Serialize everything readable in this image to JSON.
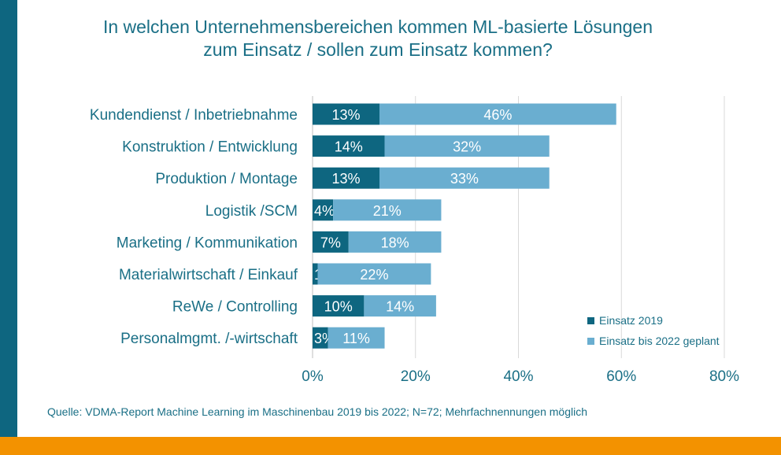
{
  "title_lines": [
    "In welchen Unternehmensbereichen kommen ML-basierte Lösungen",
    "zum Einsatz / sollen zum Einsatz kommen?"
  ],
  "source": "Quelle: VDMA-Report Machine Learning im Maschinenbau 2019 bis 2022; N=72; Mehrfachnennungen möglich",
  "colors": {
    "series_2019": "#0e6680",
    "series_2022": "#6aaed0",
    "text": "#1a6f86",
    "grid": "#d9d9d9",
    "left_bar": "#0e6680",
    "bottom_bar": "#f39200"
  },
  "chart_data": {
    "type": "bar",
    "orientation": "horizontal",
    "stacked": true,
    "categories": [
      "Kundendienst / Inbetriebnahme",
      "Konstruktion / Entwicklung",
      "Produktion / Montage",
      "Logistik /SCM",
      "Marketing / Kommunikation",
      "Materialwirtschaft / Einkauf",
      "ReWe / Controlling",
      "Personalmgmt. /-wirtschaft"
    ],
    "series": [
      {
        "name": "Einsatz 2019",
        "values": [
          13,
          14,
          13,
          4,
          7,
          1,
          10,
          3
        ]
      },
      {
        "name": "Einsatz bis 2022 geplant",
        "values": [
          46,
          32,
          33,
          21,
          18,
          22,
          14,
          11
        ]
      }
    ],
    "xlim": [
      0,
      80
    ],
    "xticks": [
      "0%",
      "20%",
      "40%",
      "60%",
      "80%"
    ],
    "grid": true,
    "legend_position": "bottom-right"
  }
}
